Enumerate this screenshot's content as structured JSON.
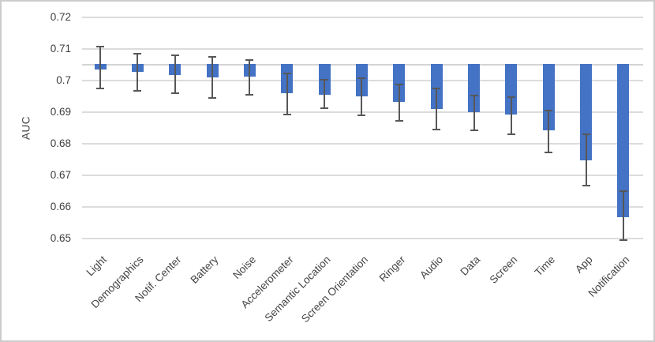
{
  "chart_data": {
    "type": "bar",
    "title": "",
    "xlabel": "",
    "ylabel": "AUC",
    "categories": [
      "Light",
      "Demographics",
      "Notif. Center",
      "Battery",
      "Noise",
      "Accelerometer",
      "Semantic Location",
      "Screen Orientation",
      "Ringer",
      "Audio",
      "Data",
      "Screen",
      "Time",
      "App",
      "Notification"
    ],
    "values": [
      0.7035,
      0.7027,
      0.7017,
      0.701,
      0.7013,
      0.696,
      0.6955,
      0.695,
      0.6932,
      0.691,
      0.69,
      0.6892,
      0.6842,
      0.6748,
      0.6567
    ],
    "error_high": [
      0.7108,
      0.7085,
      0.708,
      0.7075,
      0.7065,
      0.7022,
      0.7003,
      0.7008,
      0.6988,
      0.6975,
      0.6952,
      0.6948,
      0.6904,
      0.683,
      0.665
    ],
    "error_low": [
      0.6975,
      0.6968,
      0.696,
      0.6945,
      0.6955,
      0.6893,
      0.6912,
      0.689,
      0.6873,
      0.6845,
      0.6842,
      0.683,
      0.6773,
      0.6667,
      0.6495
    ],
    "bar_baseline": 0.705,
    "ylim": [
      0.65,
      0.72
    ],
    "yticks": [
      0.72,
      0.71,
      0.7,
      0.69,
      0.68,
      0.67,
      0.66,
      0.65
    ],
    "ytick_labels": [
      "0.72",
      "0.71",
      "0.7",
      "0.69",
      "0.68",
      "0.67",
      "0.66",
      "0.65"
    ],
    "grid": true,
    "legend": "none",
    "bar_color": "#4472c4",
    "error_color": "#575757",
    "grid_color": "#dcdcdc",
    "text_color": "#404040"
  }
}
